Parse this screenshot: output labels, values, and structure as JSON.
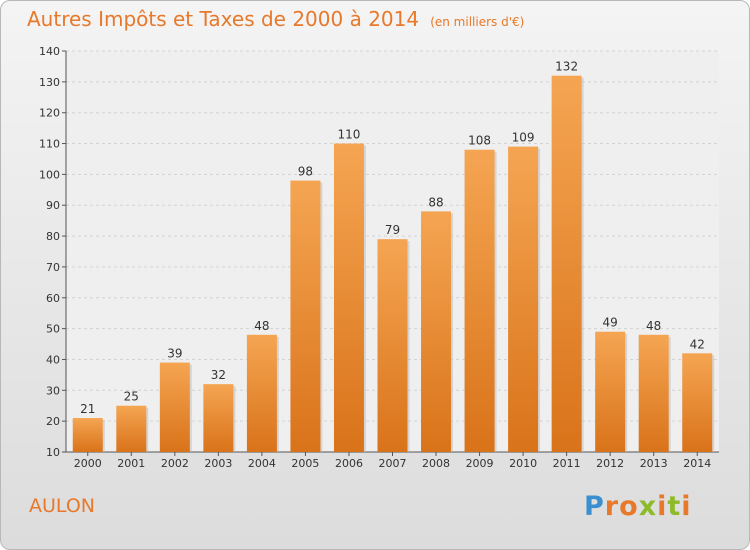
{
  "chart_data": {
    "type": "bar",
    "title": "Autres Impôts et Taxes de 2000 à 2014",
    "subtitle": "(en milliers d'€)",
    "categories": [
      "2000",
      "2001",
      "2002",
      "2003",
      "2004",
      "2005",
      "2006",
      "2007",
      "2008",
      "2009",
      "2010",
      "2011",
      "2012",
      "2013",
      "2014"
    ],
    "values": [
      21,
      25,
      39,
      32,
      48,
      98,
      110,
      79,
      88,
      108,
      109,
      132,
      49,
      48,
      42
    ],
    "ylim": [
      10,
      140
    ],
    "yticks": [
      10,
      20,
      30,
      40,
      50,
      60,
      70,
      80,
      90,
      100,
      110,
      120,
      130,
      140
    ],
    "grid": true,
    "bar_color_top": "#f5a552",
    "bar_color_bottom": "#d9731a"
  },
  "labels": {
    "commune": "AULON",
    "logo": [
      "P",
      "r",
      "o",
      "x",
      "i",
      "t",
      "i"
    ]
  },
  "colors": {
    "accent": "#e8782a",
    "logo": [
      "#3b8fd0",
      "#e8782a",
      "#e8782a",
      "#8dbb2a",
      "#e8782a",
      "#8dbb2a",
      "#e8782a"
    ]
  }
}
